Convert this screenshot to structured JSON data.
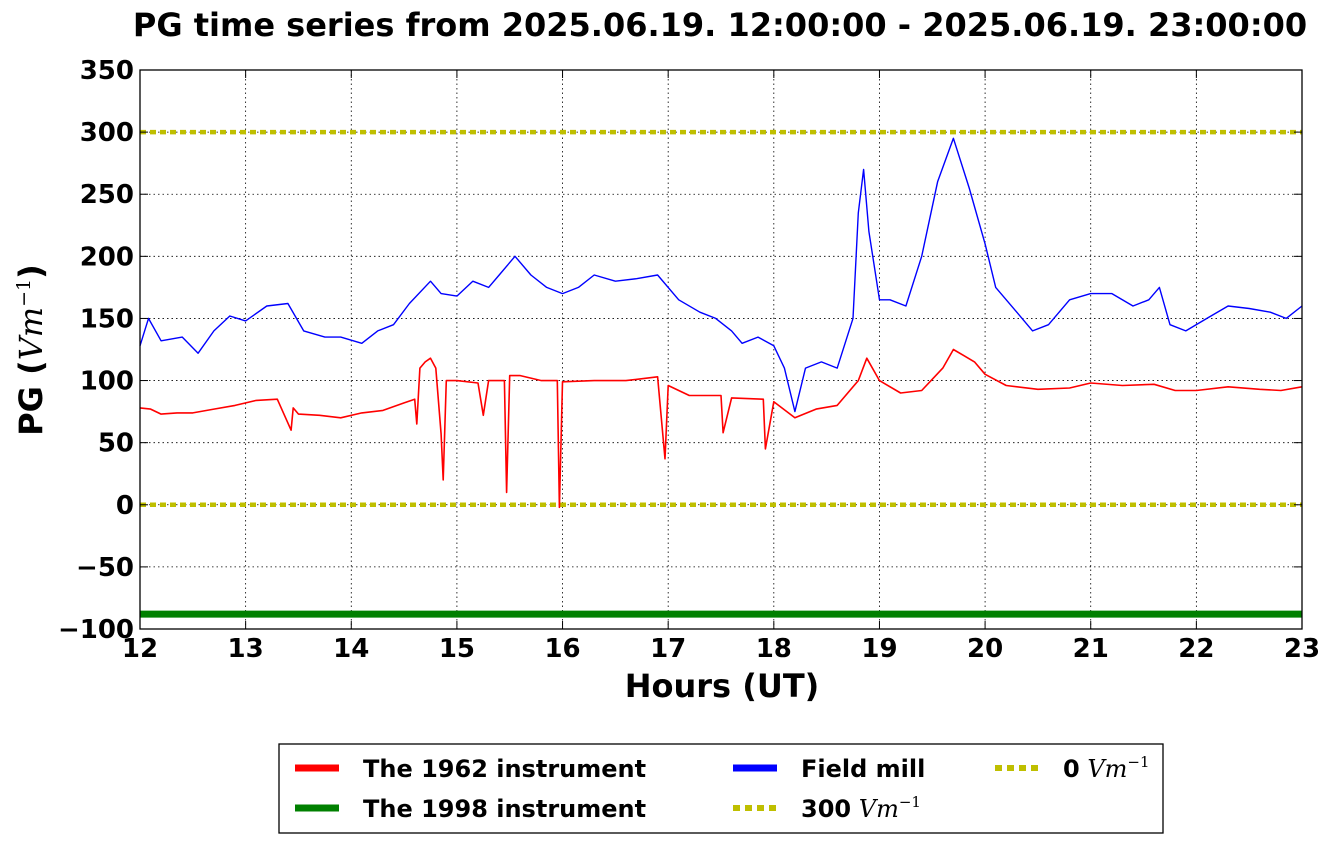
{
  "chart_data": {
    "type": "line",
    "title": "PG time series from 2025.06.19. 12:00:00 - 2025.06.19. 23:00:00",
    "xlabel": "Hours (UT)",
    "ylabel": {
      "prefix": "PG (",
      "unit": "Vm",
      "sup": "−1",
      "suffix": ")"
    },
    "xlim": [
      12,
      23
    ],
    "ylim": [
      -100,
      350
    ],
    "xticks": [
      "12",
      "13",
      "14",
      "15",
      "16",
      "17",
      "18",
      "19",
      "20",
      "21",
      "22",
      "23"
    ],
    "yticks": [
      "350",
      "300",
      "250",
      "200",
      "150",
      "100",
      "50",
      "0",
      "−50",
      "−100"
    ],
    "grid": true,
    "legend_position": "bottom-center",
    "series": [
      {
        "name": "The 1962 instrument",
        "color": "#ff0000",
        "style": "solid",
        "x": [
          12.0,
          12.1,
          12.2,
          12.35,
          12.5,
          12.7,
          12.9,
          13.1,
          13.3,
          13.43,
          13.45,
          13.5,
          13.7,
          13.9,
          14.1,
          14.3,
          14.5,
          14.6,
          14.62,
          14.65,
          14.7,
          14.75,
          14.8,
          14.85,
          14.87,
          14.9,
          15.0,
          15.2,
          15.25,
          15.3,
          15.45,
          15.47,
          15.5,
          15.6,
          15.8,
          15.95,
          15.97,
          16.0,
          16.3,
          16.6,
          16.9,
          16.97,
          17.0,
          17.2,
          17.5,
          17.52,
          17.6,
          17.9,
          17.92,
          18.0,
          18.2,
          18.4,
          18.6,
          18.8,
          18.88,
          19.0,
          19.2,
          19.4,
          19.6,
          19.7,
          19.8,
          19.9,
          20.0,
          20.2,
          20.5,
          20.8,
          21.0,
          21.3,
          21.6,
          21.8,
          22.0,
          22.3,
          22.6,
          22.8,
          23.0
        ],
        "values": [
          78,
          77,
          73,
          74,
          74,
          77,
          80,
          84,
          85,
          60,
          78,
          73,
          72,
          70,
          74,
          76,
          82,
          85,
          65,
          110,
          115,
          118,
          110,
          57,
          20,
          100,
          100,
          98,
          72,
          100,
          100,
          10,
          104,
          104,
          100,
          100,
          -2,
          99,
          100,
          100,
          103,
          37,
          96,
          88,
          88,
          58,
          86,
          85,
          45,
          83,
          70,
          77,
          80,
          100,
          118,
          100,
          90,
          92,
          110,
          125,
          120,
          115,
          105,
          96,
          93,
          94,
          98,
          96,
          97,
          92,
          92,
          95,
          93,
          92,
          95
        ]
      },
      {
        "name": "The 1998 instrument",
        "color": "#008000",
        "style": "solid",
        "x": [
          12,
          23
        ],
        "values": [
          -88,
          -88
        ]
      },
      {
        "name": "Field mill",
        "color": "#0000ff",
        "style": "solid",
        "x": [
          12.0,
          12.08,
          12.2,
          12.4,
          12.55,
          12.7,
          12.85,
          13.0,
          13.2,
          13.4,
          13.55,
          13.75,
          13.9,
          14.1,
          14.25,
          14.4,
          14.55,
          14.75,
          14.85,
          15.0,
          15.15,
          15.3,
          15.4,
          15.55,
          15.7,
          15.85,
          16.0,
          16.15,
          16.3,
          16.5,
          16.7,
          16.9,
          17.1,
          17.3,
          17.45,
          17.6,
          17.7,
          17.85,
          18.0,
          18.1,
          18.2,
          18.3,
          18.45,
          18.6,
          18.75,
          18.8,
          18.85,
          18.9,
          19.0,
          19.1,
          19.25,
          19.4,
          19.55,
          19.7,
          19.85,
          20.0,
          20.1,
          20.3,
          20.45,
          20.6,
          20.8,
          21.0,
          21.2,
          21.4,
          21.55,
          21.65,
          21.75,
          21.9,
          22.1,
          22.3,
          22.5,
          22.7,
          22.85,
          23.0
        ],
        "values": [
          128,
          150,
          132,
          135,
          122,
          140,
          152,
          148,
          160,
          162,
          140,
          135,
          135,
          130,
          140,
          145,
          162,
          180,
          170,
          168,
          180,
          175,
          185,
          200,
          185,
          175,
          170,
          175,
          185,
          180,
          182,
          185,
          165,
          155,
          150,
          140,
          130,
          135,
          128,
          110,
          75,
          110,
          115,
          110,
          150,
          235,
          270,
          220,
          165,
          165,
          160,
          200,
          260,
          295,
          255,
          210,
          175,
          155,
          140,
          145,
          165,
          170,
          170,
          160,
          165,
          175,
          145,
          140,
          150,
          160,
          158,
          155,
          150,
          160
        ]
      },
      {
        "name": "300",
        "color": "#bfbf00",
        "style": "dotted",
        "x": [
          12,
          23
        ],
        "values": [
          300,
          300
        ]
      },
      {
        "name": "0",
        "color": "#bfbf00",
        "style": "dotted",
        "x": [
          12,
          23
        ],
        "values": [
          0,
          0
        ]
      }
    ],
    "legend": [
      {
        "label": "The 1962 instrument",
        "unit": "",
        "sup": "",
        "color": "#ff0000",
        "style": "solid"
      },
      {
        "label": "The 1998 instrument",
        "unit": "",
        "sup": "",
        "color": "#008000",
        "style": "solid"
      },
      {
        "label": "Field mill",
        "unit": "",
        "sup": "",
        "color": "#0000ff",
        "style": "solid"
      },
      {
        "label": "300",
        "unit": "Vm",
        "sup": "−1",
        "color": "#bfbf00",
        "style": "dotted"
      },
      {
        "label": "0",
        "unit": "Vm",
        "sup": "−1",
        "color": "#bfbf00",
        "style": "dotted"
      }
    ]
  }
}
